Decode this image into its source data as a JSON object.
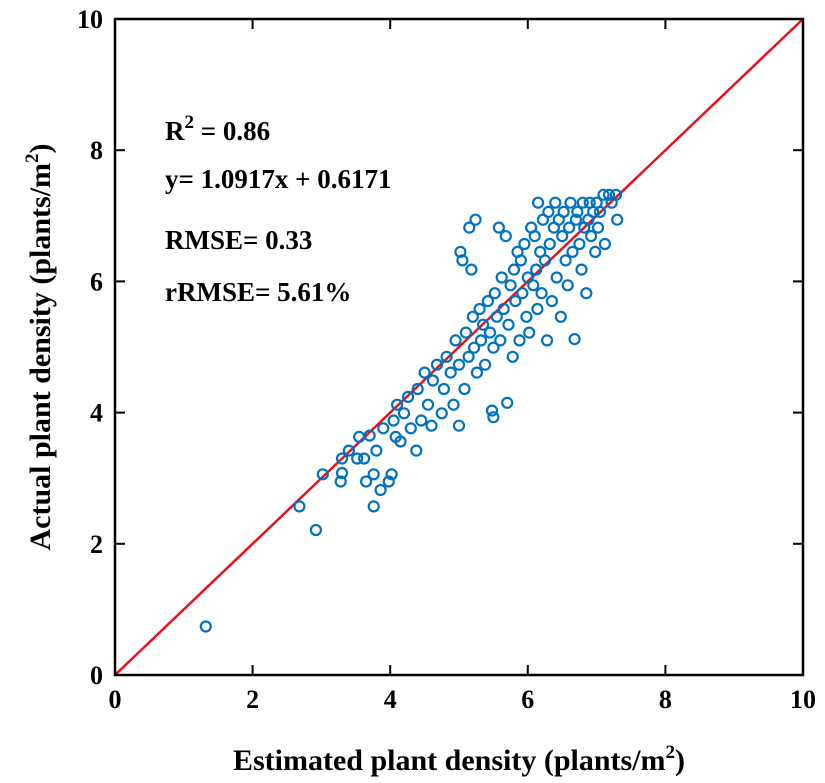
{
  "chart_data": {
    "type": "scatter",
    "xlabel": "Estimated plant density (plants/m2)",
    "xlabel_main": "Estimated plant density (plants/m",
    "xlabel_sup": "2",
    "xlabel_end": ")",
    "ylabel": "Actual plant density (plants/m2)",
    "ylabel_main": "Actual plant density (plants/m",
    "ylabel_sup": "2",
    "ylabel_end": ")",
    "xlim": [
      0,
      10
    ],
    "ylim": [
      0,
      10
    ],
    "xticks": [
      0,
      2,
      4,
      6,
      8,
      10
    ],
    "yticks": [
      0,
      2,
      4,
      6,
      8,
      10
    ],
    "grid": false,
    "point_color": "#0072BD",
    "line_color": "#E8111A",
    "reference_line": {
      "x": [
        0,
        10
      ],
      "y": [
        0,
        10
      ]
    },
    "annotations": {
      "r2_prefix": "R",
      "r2_sup": "2",
      "r2_value": " = 0.86",
      "equation": "y= 1.0917x + 0.6171",
      "rmse": "RMSE= 0.33",
      "rrmse": "rRMSE= 5.61%"
    },
    "points": [
      [
        1.32,
        0.74
      ],
      [
        2.68,
        2.57
      ],
      [
        2.92,
        2.21
      ],
      [
        3.02,
        3.06
      ],
      [
        3.28,
        2.95
      ],
      [
        3.3,
        3.08
      ],
      [
        3.3,
        3.3
      ],
      [
        3.4,
        3.42
      ],
      [
        3.52,
        3.3
      ],
      [
        3.55,
        3.63
      ],
      [
        3.62,
        3.3
      ],
      [
        3.65,
        2.95
      ],
      [
        3.7,
        3.65
      ],
      [
        3.76,
        2.57
      ],
      [
        3.76,
        3.06
      ],
      [
        3.8,
        3.42
      ],
      [
        3.86,
        2.82
      ],
      [
        3.9,
        3.76
      ],
      [
        3.98,
        2.95
      ],
      [
        4.02,
        3.06
      ],
      [
        4.05,
        3.88
      ],
      [
        4.08,
        3.63
      ],
      [
        4.1,
        4.12
      ],
      [
        4.15,
        3.56
      ],
      [
        4.2,
        3.99
      ],
      [
        4.26,
        4.24
      ],
      [
        4.3,
        3.76
      ],
      [
        4.38,
        3.42
      ],
      [
        4.4,
        4.36
      ],
      [
        4.45,
        3.88
      ],
      [
        4.5,
        4.61
      ],
      [
        4.55,
        4.12
      ],
      [
        4.6,
        3.8
      ],
      [
        4.62,
        4.49
      ],
      [
        4.68,
        4.73
      ],
      [
        4.75,
        3.99
      ],
      [
        4.78,
        4.36
      ],
      [
        4.82,
        4.85
      ],
      [
        4.88,
        4.61
      ],
      [
        4.92,
        4.12
      ],
      [
        4.95,
        5.1
      ],
      [
        5.0,
        4.73
      ],
      [
        5.0,
        3.8
      ],
      [
        5.02,
        6.45
      ],
      [
        5.05,
        6.32
      ],
      [
        5.08,
        4.36
      ],
      [
        5.1,
        5.22
      ],
      [
        5.14,
        4.85
      ],
      [
        5.15,
        6.82
      ],
      [
        5.18,
        6.18
      ],
      [
        5.2,
        5.46
      ],
      [
        5.22,
        4.99
      ],
      [
        5.24,
        6.94
      ],
      [
        5.26,
        4.61
      ],
      [
        5.3,
        5.58
      ],
      [
        5.32,
        5.1
      ],
      [
        5.35,
        5.34
      ],
      [
        5.38,
        4.73
      ],
      [
        5.42,
        5.7
      ],
      [
        5.45,
        5.22
      ],
      [
        5.48,
        4.03
      ],
      [
        5.5,
        3.93
      ],
      [
        5.5,
        4.99
      ],
      [
        5.52,
        5.82
      ],
      [
        5.55,
        5.46
      ],
      [
        5.58,
        6.82
      ],
      [
        5.6,
        5.1
      ],
      [
        5.62,
        6.06
      ],
      [
        5.65,
        5.58
      ],
      [
        5.68,
        6.69
      ],
      [
        5.7,
        4.15
      ],
      [
        5.72,
        5.34
      ],
      [
        5.75,
        5.94
      ],
      [
        5.78,
        4.85
      ],
      [
        5.8,
        6.18
      ],
      [
        5.82,
        5.7
      ],
      [
        5.85,
        6.45
      ],
      [
        5.88,
        5.1
      ],
      [
        5.9,
        6.32
      ],
      [
        5.92,
        5.82
      ],
      [
        5.95,
        6.57
      ],
      [
        5.98,
        5.46
      ],
      [
        6.0,
        6.06
      ],
      [
        6.02,
        5.22
      ],
      [
        6.05,
        6.82
      ],
      [
        6.08,
        5.94
      ],
      [
        6.1,
        6.69
      ],
      [
        6.12,
        6.18
      ],
      [
        6.14,
        5.58
      ],
      [
        6.15,
        7.2
      ],
      [
        6.18,
        6.45
      ],
      [
        6.2,
        5.82
      ],
      [
        6.22,
        6.94
      ],
      [
        6.25,
        6.32
      ],
      [
        6.28,
        5.1
      ],
      [
        6.3,
        7.06
      ],
      [
        6.32,
        6.57
      ],
      [
        6.35,
        5.7
      ],
      [
        6.38,
        6.82
      ],
      [
        6.4,
        7.2
      ],
      [
        6.42,
        6.06
      ],
      [
        6.45,
        6.94
      ],
      [
        6.48,
        5.46
      ],
      [
        6.5,
        6.69
      ],
      [
        6.52,
        7.06
      ],
      [
        6.55,
        6.32
      ],
      [
        6.58,
        5.94
      ],
      [
        6.6,
        6.82
      ],
      [
        6.62,
        7.2
      ],
      [
        6.65,
        6.45
      ],
      [
        6.68,
        5.12
      ],
      [
        6.7,
        6.94
      ],
      [
        6.72,
        7.06
      ],
      [
        6.75,
        6.57
      ],
      [
        6.78,
        6.18
      ],
      [
        6.8,
        7.2
      ],
      [
        6.82,
        6.82
      ],
      [
        6.85,
        5.82
      ],
      [
        6.88,
        6.94
      ],
      [
        6.9,
        7.2
      ],
      [
        6.92,
        6.69
      ],
      [
        6.95,
        7.06
      ],
      [
        6.98,
        6.45
      ],
      [
        7.0,
        7.2
      ],
      [
        7.02,
        6.82
      ],
      [
        7.05,
        7.06
      ],
      [
        7.1,
        7.32
      ],
      [
        7.12,
        6.57
      ],
      [
        7.18,
        7.32
      ],
      [
        7.22,
        7.2
      ],
      [
        7.28,
        7.32
      ],
      [
        7.3,
        6.94
      ]
    ]
  }
}
